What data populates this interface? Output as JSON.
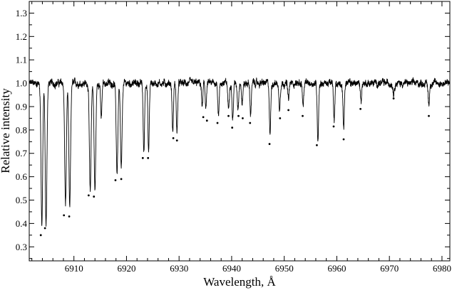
{
  "chart_data": {
    "type": "line",
    "title": "",
    "xlabel": "Wavelength, Å",
    "ylabel": "Relative intensity",
    "xlim": [
      6901.5,
      6981.5
    ],
    "ylim": [
      0.24,
      1.35
    ],
    "x_ticks": [
      6910,
      6920,
      6930,
      6940,
      6950,
      6960,
      6970,
      6980
    ],
    "y_ticks": [
      0.3,
      0.4,
      0.5,
      0.6,
      0.7,
      0.8,
      0.9,
      1.0,
      1.1,
      1.2,
      1.3
    ],
    "grid": false,
    "legend": "none",
    "colors": {
      "line": "#000000",
      "markers": "#000000",
      "axes": "#000000"
    },
    "continuum": 1.0,
    "series": [
      {
        "absorption_lines": [
          {
            "x": 6903.9,
            "depth": 0.6
          },
          {
            "x": 6904.7,
            "depth": 0.61
          },
          {
            "x": 6908.4,
            "depth": 0.52
          },
          {
            "x": 6909.2,
            "depth": 0.54
          },
          {
            "x": 6913.1,
            "depth": 0.47
          },
          {
            "x": 6914.0,
            "depth": 0.46
          },
          {
            "x": 6915.2,
            "depth": 0.15
          },
          {
            "x": 6918.2,
            "depth": 0.38
          },
          {
            "x": 6919.0,
            "depth": 0.37
          },
          {
            "x": 6923.3,
            "depth": 0.3
          },
          {
            "x": 6924.2,
            "depth": 0.3
          },
          {
            "x": 6928.8,
            "depth": 0.21
          },
          {
            "x": 6929.6,
            "depth": 0.21
          },
          {
            "x": 6934.4,
            "depth": 0.1
          },
          {
            "x": 6935.1,
            "depth": 0.1
          },
          {
            "x": 6937.5,
            "depth": 0.13
          },
          {
            "x": 6939.4,
            "depth": 0.11
          },
          {
            "x": 6940.2,
            "depth": 0.16
          },
          {
            "x": 6941.2,
            "depth": 0.1
          },
          {
            "x": 6942.0,
            "depth": 0.09
          },
          {
            "x": 6943.6,
            "depth": 0.13
          },
          {
            "x": 6947.3,
            "depth": 0.22
          },
          {
            "x": 6949.1,
            "depth": 0.11
          },
          {
            "x": 6950.8,
            "depth": 0.07
          },
          {
            "x": 6953.6,
            "depth": 0.1
          },
          {
            "x": 6956.4,
            "depth": 0.24
          },
          {
            "x": 6959.5,
            "depth": 0.16
          },
          {
            "x": 6961.3,
            "depth": 0.19
          },
          {
            "x": 6964.6,
            "depth": 0.07
          },
          {
            "x": 6970.8,
            "depth": 0.04
          },
          {
            "x": 6977.5,
            "depth": 0.09
          }
        ]
      },
      {
        "type": "scatter",
        "x": [
          6903.7,
          6904.5,
          6908.1,
          6909.1,
          6912.8,
          6913.8,
          6917.9,
          6919.0,
          6923.1,
          6924.1,
          6928.9,
          6929.6,
          6934.6,
          6935.3,
          6937.3,
          6939.4,
          6940.1,
          6941.3,
          6942.1,
          6943.5,
          6947.2,
          6949.2,
          6950.8,
          6953.5,
          6956.2,
          6959.4,
          6961.3,
          6964.5,
          6970.8,
          6977.5
        ],
        "y": [
          0.35,
          0.38,
          0.435,
          0.43,
          0.52,
          0.515,
          0.585,
          0.59,
          0.68,
          0.68,
          0.765,
          0.755,
          0.855,
          0.84,
          0.83,
          0.86,
          0.81,
          0.86,
          0.85,
          0.83,
          0.74,
          0.85,
          0.885,
          0.86,
          0.735,
          0.815,
          0.76,
          0.89,
          0.935,
          0.86
        ]
      }
    ]
  }
}
